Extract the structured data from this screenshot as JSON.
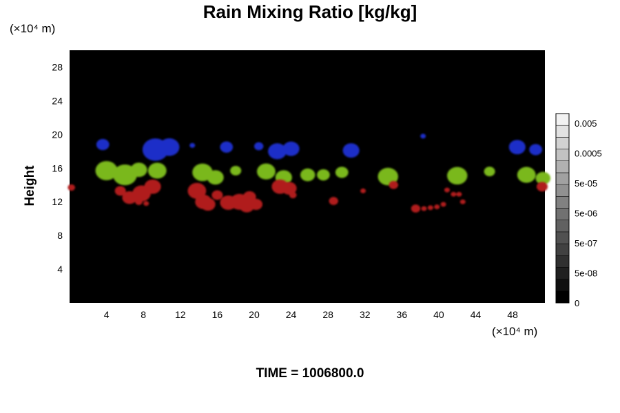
{
  "chart_data": {
    "type": "heatmap",
    "title": "Rain Mixing Ratio [kg/kg]",
    "xlabel": "",
    "ylabel": "Height",
    "x_unit_label": "(×10⁴ m)",
    "y_unit_label": "(×10⁴ m)",
    "xlim": [
      0,
      51.5
    ],
    "ylim": [
      0,
      30
    ],
    "x_ticks": [
      4,
      8,
      12,
      16,
      20,
      24,
      28,
      32,
      36,
      40,
      44,
      48
    ],
    "y_ticks": [
      4,
      8,
      12,
      16,
      20,
      24,
      28
    ],
    "background": "#000000",
    "colorbar": {
      "labels": [
        "0.005",
        "0.0005",
        "5e-05",
        "5e-06",
        "5e-07",
        "5e-08",
        "0"
      ],
      "steps": 16,
      "from_color": "#000000",
      "to_color": "#f2f2f2"
    },
    "series": [
      {
        "color": "#1e2ec8",
        "blobs": [
          {
            "x": 3.6,
            "y": 18.8,
            "r": 0.7
          },
          {
            "x": 9.3,
            "y": 18.2,
            "r": 1.4
          },
          {
            "x": 10.8,
            "y": 18.5,
            "r": 1.1
          },
          {
            "x": 13.3,
            "y": 18.7,
            "r": 0.3
          },
          {
            "x": 17.0,
            "y": 18.5,
            "r": 0.7
          },
          {
            "x": 20.5,
            "y": 18.6,
            "r": 0.5
          },
          {
            "x": 22.5,
            "y": 18.0,
            "r": 1.0
          },
          {
            "x": 24.0,
            "y": 18.3,
            "r": 0.9
          },
          {
            "x": 30.5,
            "y": 18.1,
            "r": 0.9
          },
          {
            "x": 38.3,
            "y": 19.8,
            "r": 0.3
          },
          {
            "x": 48.5,
            "y": 18.5,
            "r": 0.9
          },
          {
            "x": 50.5,
            "y": 18.2,
            "r": 0.7
          }
        ]
      },
      {
        "color": "#7ab81a",
        "blobs": [
          {
            "x": 4.0,
            "y": 15.7,
            "r": 1.2
          },
          {
            "x": 6.0,
            "y": 15.2,
            "r": 1.3
          },
          {
            "x": 7.5,
            "y": 15.8,
            "r": 0.9
          },
          {
            "x": 9.5,
            "y": 15.7,
            "r": 1.0
          },
          {
            "x": 14.4,
            "y": 15.5,
            "r": 1.1
          },
          {
            "x": 15.8,
            "y": 14.9,
            "r": 0.9
          },
          {
            "x": 18.0,
            "y": 15.7,
            "r": 0.6
          },
          {
            "x": 21.3,
            "y": 15.6,
            "r": 1.0
          },
          {
            "x": 23.2,
            "y": 14.9,
            "r": 0.9
          },
          {
            "x": 25.8,
            "y": 15.2,
            "r": 0.8
          },
          {
            "x": 27.5,
            "y": 15.2,
            "r": 0.7
          },
          {
            "x": 29.5,
            "y": 15.5,
            "r": 0.7
          },
          {
            "x": 34.5,
            "y": 15.0,
            "r": 1.1
          },
          {
            "x": 42.0,
            "y": 15.1,
            "r": 1.1
          },
          {
            "x": 45.5,
            "y": 15.6,
            "r": 0.6
          },
          {
            "x": 49.5,
            "y": 15.2,
            "r": 1.0
          },
          {
            "x": 51.3,
            "y": 14.8,
            "r": 0.8
          }
        ]
      },
      {
        "color": "#b01a1a",
        "blobs": [
          {
            "x": 0.2,
            "y": 13.7,
            "r": 0.4
          },
          {
            "x": 5.5,
            "y": 13.3,
            "r": 0.6
          },
          {
            "x": 6.5,
            "y": 12.5,
            "r": 0.8
          },
          {
            "x": 7.8,
            "y": 13.0,
            "r": 1.0
          },
          {
            "x": 9.0,
            "y": 13.8,
            "r": 0.9
          },
          {
            "x": 7.5,
            "y": 12.0,
            "r": 0.4
          },
          {
            "x": 8.3,
            "y": 11.8,
            "r": 0.3
          },
          {
            "x": 13.8,
            "y": 13.3,
            "r": 1.0
          },
          {
            "x": 14.5,
            "y": 12.0,
            "r": 0.9
          },
          {
            "x": 15.0,
            "y": 11.7,
            "r": 0.8
          },
          {
            "x": 16.0,
            "y": 12.8,
            "r": 0.6
          },
          {
            "x": 17.2,
            "y": 11.9,
            "r": 0.9
          },
          {
            "x": 18.4,
            "y": 12.0,
            "r": 1.0
          },
          {
            "x": 19.2,
            "y": 11.5,
            "r": 0.8
          },
          {
            "x": 20.2,
            "y": 11.7,
            "r": 0.7
          },
          {
            "x": 19.5,
            "y": 12.6,
            "r": 0.7
          },
          {
            "x": 22.8,
            "y": 13.8,
            "r": 0.9
          },
          {
            "x": 23.8,
            "y": 13.6,
            "r": 0.8
          },
          {
            "x": 24.2,
            "y": 12.8,
            "r": 0.4
          },
          {
            "x": 28.6,
            "y": 12.1,
            "r": 0.5
          },
          {
            "x": 31.8,
            "y": 13.3,
            "r": 0.3
          },
          {
            "x": 35.1,
            "y": 14.0,
            "r": 0.5
          },
          {
            "x": 37.5,
            "y": 11.2,
            "r": 0.5
          },
          {
            "x": 38.4,
            "y": 11.2,
            "r": 0.3
          },
          {
            "x": 39.1,
            "y": 11.3,
            "r": 0.3
          },
          {
            "x": 39.8,
            "y": 11.4,
            "r": 0.3
          },
          {
            "x": 40.5,
            "y": 11.7,
            "r": 0.3
          },
          {
            "x": 40.9,
            "y": 13.4,
            "r": 0.3
          },
          {
            "x": 41.6,
            "y": 12.9,
            "r": 0.3
          },
          {
            "x": 42.2,
            "y": 12.9,
            "r": 0.3
          },
          {
            "x": 42.6,
            "y": 12.0,
            "r": 0.3
          },
          {
            "x": 51.2,
            "y": 13.8,
            "r": 0.6
          }
        ]
      }
    ]
  },
  "footer": {
    "time_label": "TIME = 1006800.0"
  }
}
